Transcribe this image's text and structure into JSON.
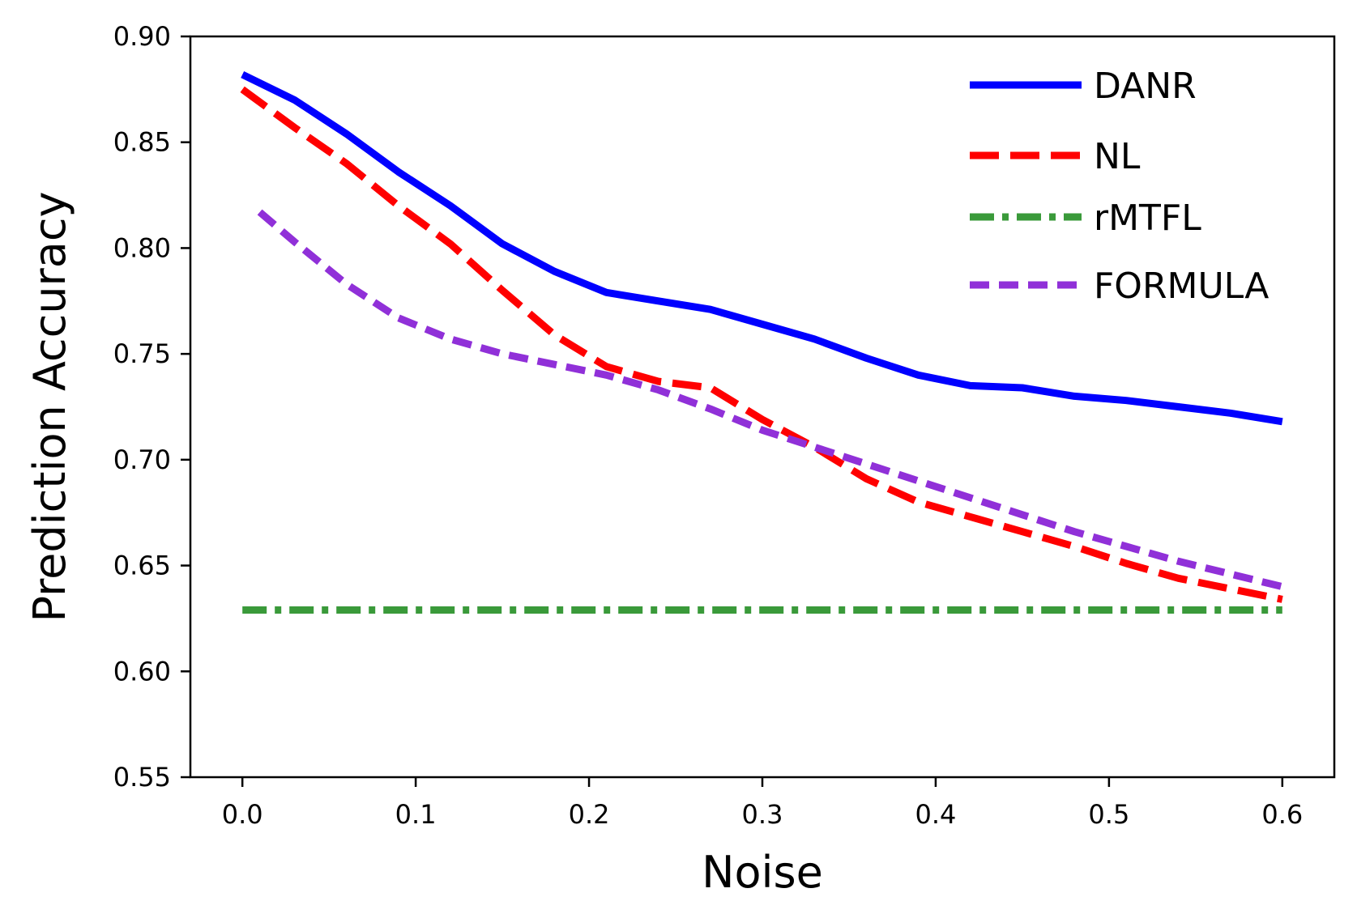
{
  "chart_data": {
    "type": "line",
    "title": "",
    "xlabel": "Noise",
    "ylabel": "Prediction Accuracy",
    "xlim": [
      -0.03,
      0.63
    ],
    "ylim": [
      0.55,
      0.9
    ],
    "x_ticks": [
      0.0,
      0.1,
      0.2,
      0.3,
      0.4,
      0.5,
      0.6
    ],
    "x_tick_labels": [
      "0.0",
      "0.1",
      "0.2",
      "0.3",
      "0.4",
      "0.5",
      "0.6"
    ],
    "y_ticks": [
      0.55,
      0.6,
      0.65,
      0.7,
      0.75,
      0.8,
      0.85,
      0.9
    ],
    "y_tick_labels": [
      "0.55",
      "0.60",
      "0.65",
      "0.70",
      "0.75",
      "0.80",
      "0.85",
      "0.90"
    ],
    "grid": false,
    "legend_position": "top-right",
    "series": [
      {
        "name": "DANR",
        "color": "#0000ff",
        "style": "solid",
        "x": [
          0.0,
          0.03,
          0.06,
          0.09,
          0.12,
          0.15,
          0.18,
          0.21,
          0.24,
          0.27,
          0.3,
          0.33,
          0.36,
          0.39,
          0.42,
          0.45,
          0.48,
          0.51,
          0.54,
          0.57,
          0.6
        ],
        "y": [
          0.882,
          0.87,
          0.854,
          0.836,
          0.82,
          0.802,
          0.789,
          0.779,
          0.775,
          0.771,
          0.764,
          0.757,
          0.748,
          0.74,
          0.735,
          0.734,
          0.73,
          0.728,
          0.725,
          0.722,
          0.718
        ]
      },
      {
        "name": "NL",
        "color": "#ff0000",
        "style": "dashed",
        "x": [
          0.0,
          0.03,
          0.06,
          0.09,
          0.12,
          0.15,
          0.18,
          0.21,
          0.24,
          0.27,
          0.3,
          0.33,
          0.36,
          0.39,
          0.42,
          0.45,
          0.48,
          0.51,
          0.54,
          0.57,
          0.6
        ],
        "y": [
          0.875,
          0.857,
          0.84,
          0.82,
          0.802,
          0.78,
          0.759,
          0.744,
          0.737,
          0.734,
          0.719,
          0.706,
          0.691,
          0.68,
          0.673,
          0.666,
          0.659,
          0.651,
          0.644,
          0.639,
          0.634
        ]
      },
      {
        "name": "rMTFL",
        "color": "#3a9a3a",
        "style": "dashdot",
        "x": [
          0.0,
          0.6
        ],
        "y": [
          0.629,
          0.629
        ]
      },
      {
        "name": "FORMULA",
        "color": "#9030d8",
        "style": "dotted",
        "x": [
          0.01,
          0.03,
          0.06,
          0.09,
          0.12,
          0.15,
          0.18,
          0.21,
          0.24,
          0.27,
          0.3,
          0.33,
          0.36,
          0.39,
          0.42,
          0.45,
          0.48,
          0.51,
          0.54,
          0.57,
          0.6
        ],
        "y": [
          0.817,
          0.803,
          0.783,
          0.767,
          0.757,
          0.75,
          0.745,
          0.74,
          0.733,
          0.724,
          0.714,
          0.706,
          0.698,
          0.69,
          0.682,
          0.674,
          0.666,
          0.659,
          0.652,
          0.646,
          0.64
        ]
      }
    ]
  }
}
